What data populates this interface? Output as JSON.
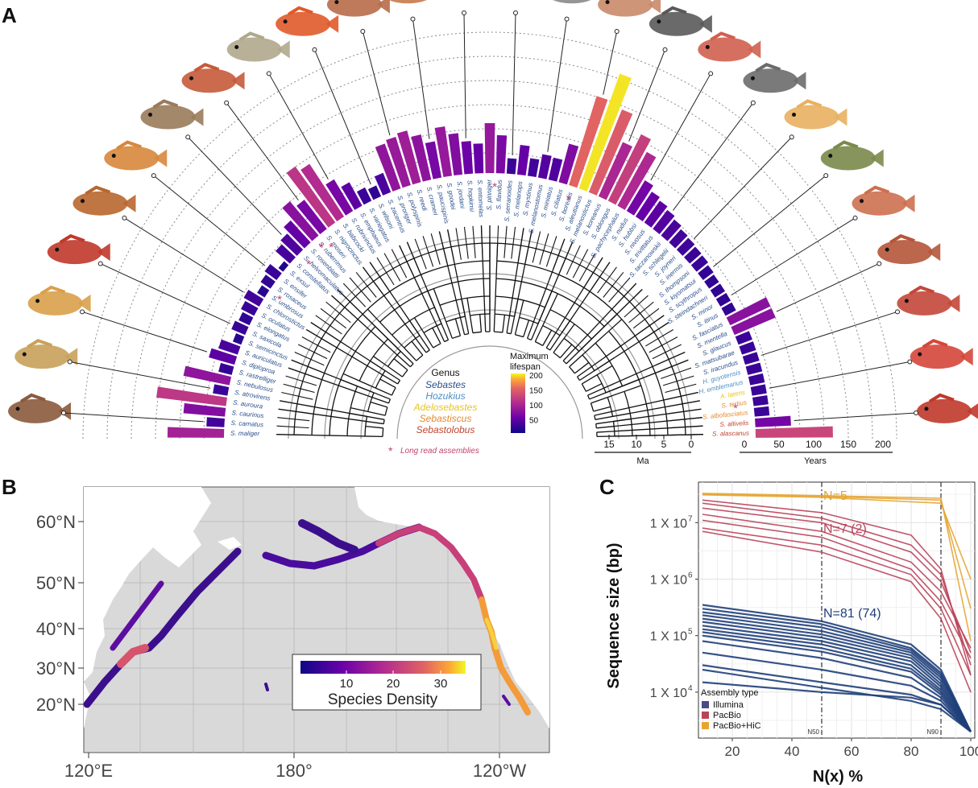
{
  "panelA": {
    "letter": "A",
    "species": [
      {
        "name": "S. maliger",
        "genus": "Sebastes",
        "lifespan": 95
      },
      {
        "name": "S. carnatus",
        "genus": "Sebastes",
        "lifespan": 30
      },
      {
        "name": "S. caurinus",
        "genus": "Sebastes",
        "lifespan": 70
      },
      {
        "name": "S. auroura",
        "genus": "Sebastes",
        "lifespan": 118
      },
      {
        "name": "S. atrovirens",
        "genus": "Sebastes",
        "lifespan": 25
      },
      {
        "name": "S. nebulosus",
        "genus": "Sebastes",
        "lifespan": 79
      },
      {
        "name": "S. rastrelliger",
        "genus": "Sebastes",
        "lifespan": 23
      },
      {
        "name": "S. diploproa",
        "genus": "Sebastes",
        "lifespan": 45
      },
      {
        "name": "S. auriculatus",
        "genus": "Sebastes",
        "lifespan": 34
      },
      {
        "name": "S. semicinctus",
        "genus": "Sebastes",
        "lifespan": 15
      },
      {
        "name": "S. saxicola",
        "genus": "Sebastes",
        "lifespan": 25
      },
      {
        "name": "S. elongatus",
        "genus": "Sebastes",
        "lifespan": 20
      },
      {
        "name": "S. oculatus",
        "genus": "Sebastes",
        "lifespan": 25
      },
      {
        "name": "S. chlorostictus",
        "genus": "Sebastes",
        "lifespan": 30
      },
      {
        "name": "S. umbrosus",
        "genus": "Sebastes",
        "lifespan": 15
      },
      {
        "name": "S. rosaceus",
        "genus": "Sebastes",
        "lifespan": 20
      },
      {
        "name": "S. ensifer",
        "genus": "Sebastes",
        "lifespan": 25
      },
      {
        "name": "S. exsul",
        "genus": "Sebastes",
        "lifespan": 10
      },
      {
        "name": "S. constellatus",
        "genus": "Sebastes",
        "lifespan": 32
      },
      {
        "name": "S. helvomaculatus",
        "genus": "Sebastes",
        "lifespan": 38
      },
      {
        "name": "S. rosenblatti",
        "genus": "Sebastes",
        "lifespan": 50
      },
      {
        "name": "S. ruberrimus",
        "genus": "Sebastes",
        "lifespan": 75
      },
      {
        "name": "S. moseri",
        "genus": "Sebastes",
        "lifespan": 62
      },
      {
        "name": "S. nigrocinctus",
        "genus": "Sebastes",
        "lifespan": 116
      },
      {
        "name": "S. babcocki",
        "genus": "Sebastes",
        "lifespan": 106
      },
      {
        "name": "S. rubrivinctus",
        "genus": "Sebastes",
        "lifespan": 62
      },
      {
        "name": "S. emphaeus",
        "genus": "Sebastes",
        "lifespan": 45
      },
      {
        "name": "S. variegatus",
        "genus": "Sebastes",
        "lifespan": 25
      },
      {
        "name": "S. wilsoni",
        "genus": "Sebastes",
        "lifespan": 20
      },
      {
        "name": "S. zacentrus",
        "genus": "Sebastes",
        "lifespan": 35
      },
      {
        "name": "S. proriger",
        "genus": "Sebastes",
        "lifespan": 80
      },
      {
        "name": "S. polyspinis",
        "genus": "Sebastes",
        "lifespan": 85
      },
      {
        "name": "S. reedi",
        "genus": "Sebastes",
        "lifespan": 90
      },
      {
        "name": "S. crameri",
        "genus": "Sebastes",
        "lifespan": 78
      },
      {
        "name": "S. paucispinis",
        "genus": "Sebastes",
        "lifespan": 62
      },
      {
        "name": "S. goodei",
        "genus": "Sebastes",
        "lifespan": 84
      },
      {
        "name": "S. jordani",
        "genus": "Sebastes",
        "lifespan": 70
      },
      {
        "name": "S. hopkinsi",
        "genus": "Sebastes",
        "lifespan": 55
      },
      {
        "name": "S. entomelas",
        "genus": "Sebastes",
        "lifespan": 50
      },
      {
        "name": "S. pinniger",
        "genus": "Sebastes",
        "lifespan": 84
      },
      {
        "name": "S. flavidus",
        "genus": "Sebastes",
        "lifespan": 64
      },
      {
        "name": "S. serranoides",
        "genus": "Sebastes",
        "lifespan": 26
      },
      {
        "name": "S. melanops",
        "genus": "Sebastes",
        "lifespan": 50
      },
      {
        "name": "S. mystinus",
        "genus": "Sebastes",
        "lifespan": 30
      },
      {
        "name": "S. melanostomus",
        "genus": "Sebastes",
        "lifespan": 40
      },
      {
        "name": "S. miniatus",
        "genus": "Sebastes",
        "lifespan": 38
      },
      {
        "name": "S. ciliatus",
        "genus": "Sebastes",
        "lifespan": 67
      },
      {
        "name": "S. borealis",
        "genus": "Sebastes",
        "lifespan": 157
      },
      {
        "name": "S. aleutianus",
        "genus": "Sebastes",
        "lifespan": 205
      },
      {
        "name": "S. melanostictus",
        "genus": "Sebastes",
        "lifespan": 150
      },
      {
        "name": "S. koreanus",
        "genus": "Sebastes",
        "lifespan": 100
      },
      {
        "name": "S. oblongus",
        "genus": "Sebastes",
        "lifespan": 125
      },
      {
        "name": "S. pachycephalus",
        "genus": "Sebastes",
        "lifespan": 103
      },
      {
        "name": "S. nudus",
        "genus": "Sebastes",
        "lifespan": 60
      },
      {
        "name": "S. hubbsi",
        "genus": "Sebastes",
        "lifespan": 50
      },
      {
        "name": "S. nivosus",
        "genus": "Sebastes",
        "lifespan": 45
      },
      {
        "name": "S. trivittatus",
        "genus": "Sebastes",
        "lifespan": 40
      },
      {
        "name": "S. taczanowskii",
        "genus": "Sebastes",
        "lifespan": 35
      },
      {
        "name": "S. schlegelii",
        "genus": "Sebastes",
        "lifespan": 30
      },
      {
        "name": "S. joyneri",
        "genus": "Sebastes",
        "lifespan": 28
      },
      {
        "name": "S. inermis",
        "genus": "Sebastes",
        "lifespan": 26
      },
      {
        "name": "S. thompsoni",
        "genus": "Sebastes",
        "lifespan": 25
      },
      {
        "name": "S. kiyomatsui",
        "genus": "Sebastes",
        "lifespan": 22
      },
      {
        "name": "S. scythropus",
        "genus": "Sebastes",
        "lifespan": 20
      },
      {
        "name": "S. steindachneri",
        "genus": "Sebastes",
        "lifespan": 20
      },
      {
        "name": "S. minor",
        "genus": "Sebastes",
        "lifespan": 20
      },
      {
        "name": "S. itinus",
        "genus": "Sebastes",
        "lifespan": 20
      },
      {
        "name": "S. fasciatus",
        "genus": "Sebastes",
        "lifespan": 75
      },
      {
        "name": "S. mentella",
        "genus": "Sebastes",
        "lifespan": 75
      },
      {
        "name": "S. glaucus",
        "genus": "Sebastes",
        "lifespan": 25
      },
      {
        "name": "S. matsubarae",
        "genus": "Sebastes",
        "lifespan": 25
      },
      {
        "name": "S. iracundus",
        "genus": "Sebastes",
        "lifespan": 25
      },
      {
        "name": "H. guyotensis",
        "genus": "Hozukius",
        "lifespan": 25
      },
      {
        "name": "H. emblemarius",
        "genus": "Hozukius",
        "lifespan": 25
      },
      {
        "name": "A. latens",
        "genus": "Adelosebastes",
        "lifespan": 25
      },
      {
        "name": "S. tertius",
        "genus": "Sebastiscus",
        "lifespan": 25
      },
      {
        "name": "S. albofasciatus",
        "genus": "Sebastiscus",
        "lifespan": 25
      },
      {
        "name": "S. altivelis",
        "genus": "Sebastolobus",
        "lifespan": 60
      },
      {
        "name": "S. alascanus",
        "genus": "Sebastolobus",
        "lifespan": 130
      }
    ],
    "genus_legend": {
      "title": "Genus",
      "items": [
        {
          "name": "Sebastes",
          "color": "#2b4f8c"
        },
        {
          "name": "Hozukius",
          "color": "#4f8fc0"
        },
        {
          "name": "Adelosebastes",
          "color": "#e8c420"
        },
        {
          "name": "Sebastiscus",
          "color": "#e58a2a"
        },
        {
          "name": "Sebastolobus",
          "color": "#c0462f"
        }
      ]
    },
    "lifespan_legend": {
      "title_line1": "Maximum",
      "title_line2": "lifespan",
      "ticks": [
        "200",
        "150",
        "100",
        "50"
      ]
    },
    "long_read_note": "Long read assemblies",
    "asterisk": "*",
    "ma_axis": {
      "label": "Ma",
      "ticks": [
        "15",
        "10",
        "5",
        "0"
      ]
    },
    "years_axis": {
      "label": "Years",
      "ticks": [
        "0",
        "50",
        "100",
        "150",
        "200"
      ]
    }
  },
  "panelB": {
    "letter": "B",
    "lat_ticks": [
      "60°N",
      "50°N",
      "40°N",
      "30°N",
      "20°N"
    ],
    "lon_ticks": [
      "120°E",
      "180°",
      "120°W"
    ],
    "colorbar": {
      "ticks": [
        "10",
        "20",
        "30"
      ],
      "label": "Species Density"
    }
  },
  "panelC": {
    "letter": "C",
    "chart_data": {
      "type": "line",
      "xlabel": "N(x) %",
      "ylabel": "Sequence size (bp)",
      "x_ticks": [
        "20",
        "40",
        "60",
        "80",
        "100"
      ],
      "y_ticks": [
        "1 X 10",
        "1 X 10",
        "1 X 10",
        "1 X 10"
      ],
      "y_exponents": [
        "7",
        "6",
        "5",
        "4"
      ],
      "yscale": "log",
      "xlim": [
        10,
        100
      ],
      "ylim": [
        2000,
        40000000
      ],
      "vlines": [
        {
          "x": 50,
          "label": "N50"
        },
        {
          "x": 90,
          "label": "N90"
        }
      ],
      "annotations": [
        {
          "text": "N=5",
          "color": "#e6a532"
        },
        {
          "text": "N=7 (2)",
          "color": "#b9445a"
        },
        {
          "text": "N=81 (74)",
          "color": "#1f3f7a"
        }
      ],
      "legend": {
        "title": "Assembly type",
        "position": "bottom-left",
        "items": [
          {
            "name": "Illumina",
            "color": "#4b4a86"
          },
          {
            "name": "PacBio",
            "color": "#b9445a"
          },
          {
            "name": "PacBio+HiC",
            "color": "#e6a532"
          }
        ]
      },
      "series": [
        {
          "group": "PacBio+HiC",
          "x": [
            10,
            50,
            90,
            100
          ],
          "y": [
            33000000,
            30000000,
            27000000,
            80000
          ]
        },
        {
          "group": "PacBio+HiC",
          "x": [
            10,
            50,
            90,
            100
          ],
          "y": [
            32000000,
            29000000,
            25000000,
            300000
          ]
        },
        {
          "group": "PacBio+HiC",
          "x": [
            10,
            50,
            90,
            100
          ],
          "y": [
            31000000,
            28000000,
            22000000,
            1000000
          ]
        },
        {
          "group": "PacBio",
          "x": [
            10,
            50,
            80,
            90,
            100
          ],
          "y": [
            25000000,
            15000000,
            6000000,
            1500000,
            20000
          ]
        },
        {
          "group": "PacBio",
          "x": [
            10,
            50,
            80,
            90,
            100
          ],
          "y": [
            22000000,
            12000000,
            4000000,
            1200000,
            30000
          ]
        },
        {
          "group": "PacBio",
          "x": [
            10,
            50,
            80,
            90,
            100
          ],
          "y": [
            18000000,
            10000000,
            3000000,
            900000,
            50000
          ]
        },
        {
          "group": "PacBio",
          "x": [
            10,
            50,
            80,
            90,
            100
          ],
          "y": [
            14000000,
            7000000,
            2000000,
            600000,
            60000
          ]
        },
        {
          "group": "PacBio",
          "x": [
            10,
            50,
            80,
            90,
            100
          ],
          "y": [
            11000000,
            5500000,
            1500000,
            400000,
            40000
          ]
        },
        {
          "group": "PacBio",
          "x": [
            10,
            50,
            80,
            90,
            100
          ],
          "y": [
            8000000,
            4000000,
            1200000,
            300000,
            20000
          ]
        },
        {
          "group": "PacBio",
          "x": [
            10,
            50,
            80,
            90,
            100
          ],
          "y": [
            7000000,
            3000000,
            900000,
            200000,
            10000
          ]
        },
        {
          "group": "Illumina",
          "x": [
            10,
            50,
            80,
            90,
            100
          ],
          "y": [
            350000,
            180000,
            70000,
            25000,
            2000
          ]
        },
        {
          "group": "Illumina",
          "x": [
            10,
            50,
            80,
            90,
            100
          ],
          "y": [
            300000,
            160000,
            60000,
            22000,
            2000
          ]
        },
        {
          "group": "Illumina",
          "x": [
            10,
            50,
            80,
            90,
            100
          ],
          "y": [
            260000,
            140000,
            55000,
            20000,
            2000
          ]
        },
        {
          "group": "Illumina",
          "x": [
            10,
            50,
            80,
            90,
            100
          ],
          "y": [
            230000,
            120000,
            50000,
            18000,
            2000
          ]
        },
        {
          "group": "Illumina",
          "x": [
            10,
            50,
            80,
            90,
            100
          ],
          "y": [
            200000,
            105000,
            45000,
            16000,
            2000
          ]
        },
        {
          "group": "Illumina",
          "x": [
            10,
            50,
            80,
            90,
            100
          ],
          "y": [
            175000,
            92000,
            40000,
            14000,
            2000
          ]
        },
        {
          "group": "Illumina",
          "x": [
            10,
            50,
            80,
            90,
            100
          ],
          "y": [
            150000,
            80000,
            35000,
            12500,
            2000
          ]
        },
        {
          "group": "Illumina",
          "x": [
            10,
            50,
            80,
            90,
            100
          ],
          "y": [
            130000,
            70000,
            30000,
            11000,
            2000
          ]
        },
        {
          "group": "Illumina",
          "x": [
            10,
            50,
            80,
            90,
            100
          ],
          "y": [
            115000,
            60000,
            26000,
            10000,
            2000
          ]
        },
        {
          "group": "Illumina",
          "x": [
            10,
            50,
            80,
            90,
            100
          ],
          "y": [
            100000,
            52000,
            23000,
            9000,
            2000
          ]
        },
        {
          "group": "Illumina",
          "x": [
            10,
            50,
            80,
            90,
            100
          ],
          "y": [
            80000,
            40000,
            18000,
            8000,
            2000
          ]
        },
        {
          "group": "Illumina",
          "x": [
            10,
            50,
            80,
            90,
            100
          ],
          "y": [
            50000,
            25000,
            13000,
            7000,
            2000
          ]
        },
        {
          "group": "Illumina",
          "x": [
            10,
            50,
            80,
            90,
            100
          ],
          "y": [
            30000,
            15000,
            9000,
            6000,
            2000
          ]
        },
        {
          "group": "Illumina",
          "x": [
            10,
            50,
            80,
            90,
            100
          ],
          "y": [
            25000,
            12000,
            7000,
            5000,
            2000
          ]
        },
        {
          "group": "Illumina",
          "x": [
            10,
            50,
            80,
            90,
            100
          ],
          "y": [
            15000,
            10000,
            8000,
            6000,
            2000
          ]
        }
      ]
    }
  }
}
